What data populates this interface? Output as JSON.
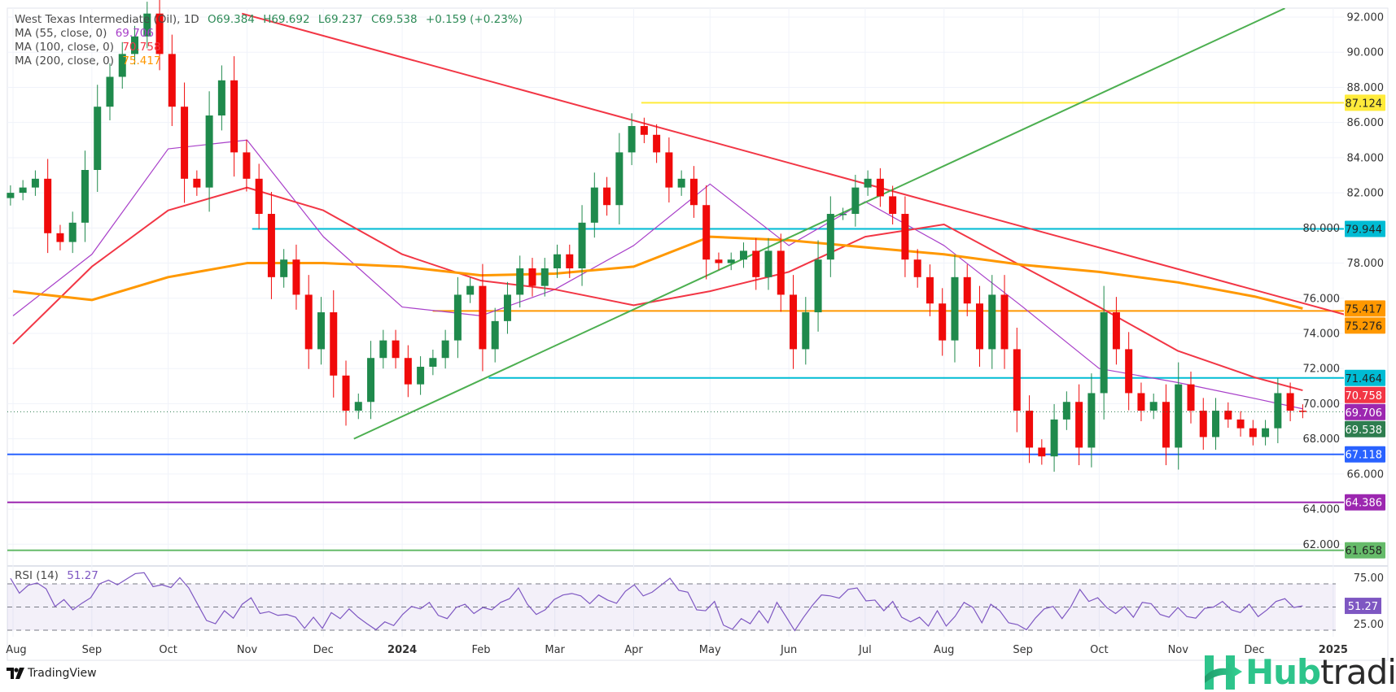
{
  "chart_data": {
    "type": "candlestick",
    "title": "West Texas Intermediate (Oil), 1D",
    "ohlc": {
      "open": "O69.384",
      "high": "H69.692",
      "low": "L69.237",
      "close": "C69.538",
      "change": "+0.159 (+0.23%)"
    },
    "ylim": [
      60.9,
      92.5
    ],
    "y_ticks": [
      "92.000",
      "90.000",
      "88.000",
      "86.000",
      "84.000",
      "82.000",
      "80.000",
      "78.000",
      "76.000",
      "74.000",
      "72.000",
      "70.000",
      "68.000",
      "66.000",
      "64.000",
      "62.000"
    ],
    "x_ticks": [
      {
        "label": "Aug",
        "date": "2023-08-01"
      },
      {
        "label": "Sep",
        "date": "2023-09-01"
      },
      {
        "label": "Oct",
        "date": "2023-10-01"
      },
      {
        "label": "Nov",
        "date": "2023-11-01"
      },
      {
        "label": "Dec",
        "date": "2023-12-01"
      },
      {
        "label": "2024",
        "date": "2024-01-01",
        "bold": true
      },
      {
        "label": "Feb",
        "date": "2024-02-01"
      },
      {
        "label": "Mar",
        "date": "2024-03-01"
      },
      {
        "label": "Apr",
        "date": "2024-04-01"
      },
      {
        "label": "May",
        "date": "2024-05-01"
      },
      {
        "label": "Jun",
        "date": "2024-06-01"
      },
      {
        "label": "Jul",
        "date": "2024-07-01"
      },
      {
        "label": "Aug",
        "date": "2024-08-01"
      },
      {
        "label": "Sep",
        "date": "2024-09-01"
      },
      {
        "label": "Oct",
        "date": "2024-10-01"
      },
      {
        "label": "Nov",
        "date": "2024-11-01"
      },
      {
        "label": "Dec",
        "date": "2024-12-01"
      },
      {
        "label": "2025",
        "date": "2025-01-01",
        "bold": true
      }
    ],
    "grid": true,
    "colors": {
      "up": "#1f8a4c",
      "down": "#f00a0a"
    },
    "first_date": "2023-07-31",
    "last_date": "2024-12-20",
    "closes": [
      82.0,
      82.3,
      82.8,
      79.7,
      79.2,
      80.3,
      83.3,
      86.9,
      88.6,
      89.9,
      90.9,
      92.2,
      89.9,
      86.9,
      82.8,
      82.3,
      86.4,
      88.4,
      84.3,
      82.8,
      80.8,
      77.2,
      78.2,
      76.2,
      73.1,
      75.2,
      71.6,
      69.6,
      70.1,
      72.6,
      73.6,
      72.6,
      71.1,
      72.1,
      72.6,
      73.6,
      76.2,
      76.7,
      73.1,
      74.7,
      76.2,
      77.7,
      76.7,
      77.7,
      78.5,
      77.7,
      80.3,
      82.3,
      81.3,
      84.3,
      85.8,
      85.3,
      84.3,
      82.3,
      82.8,
      81.3,
      78.2,
      78.0,
      78.2,
      78.7,
      77.2,
      78.7,
      76.2,
      73.1,
      75.2,
      78.2,
      80.8,
      80.8,
      82.3,
      82.8,
      81.8,
      80.8,
      78.2,
      77.2,
      75.7,
      73.6,
      77.2,
      75.7,
      73.1,
      76.2,
      73.1,
      69.6,
      67.5,
      67.0,
      69.1,
      70.1,
      67.5,
      70.6,
      75.2,
      73.1,
      70.6,
      69.6,
      70.1,
      67.5,
      71.1,
      69.6,
      68.1,
      69.6,
      69.1,
      68.6,
      68.1,
      68.6,
      70.6,
      69.6,
      69.538
    ],
    "moving_averages": [
      {
        "name": "MA (55, close, 0)",
        "value": "69.706",
        "color": "#a83fc9",
        "points": [
          [
            "2023-08-01",
            75.0
          ],
          [
            "2023-09-01",
            78.5
          ],
          [
            "2023-10-01",
            84.5
          ],
          [
            "2023-11-01",
            85.0
          ],
          [
            "2023-12-01",
            79.5
          ],
          [
            "2024-01-01",
            75.5
          ],
          [
            "2024-02-01",
            75.0
          ],
          [
            "2024-03-01",
            76.5
          ],
          [
            "2024-04-01",
            79.0
          ],
          [
            "2024-05-01",
            82.5
          ],
          [
            "2024-06-01",
            79.0
          ],
          [
            "2024-07-01",
            81.5
          ],
          [
            "2024-08-01",
            79.0
          ],
          [
            "2024-09-01",
            75.5
          ],
          [
            "2024-10-01",
            72.0
          ],
          [
            "2024-11-01",
            71.2
          ],
          [
            "2024-12-01",
            70.3
          ],
          [
            "2024-12-20",
            69.706
          ]
        ]
      },
      {
        "name": "MA (100, close, 0)",
        "value": "70.758",
        "color": "#f23645",
        "points": [
          [
            "2023-08-01",
            73.4
          ],
          [
            "2023-09-01",
            77.8
          ],
          [
            "2023-10-01",
            81.0
          ],
          [
            "2023-11-01",
            82.3
          ],
          [
            "2023-12-01",
            81.0
          ],
          [
            "2024-01-01",
            78.5
          ],
          [
            "2024-02-01",
            77.0
          ],
          [
            "2024-03-01",
            76.5
          ],
          [
            "2024-04-01",
            75.6
          ],
          [
            "2024-05-01",
            76.4
          ],
          [
            "2024-06-01",
            77.5
          ],
          [
            "2024-07-01",
            79.5
          ],
          [
            "2024-08-01",
            80.2
          ],
          [
            "2024-09-01",
            77.8
          ],
          [
            "2024-10-01",
            75.5
          ],
          [
            "2024-11-01",
            73.0
          ],
          [
            "2024-12-01",
            71.5
          ],
          [
            "2024-12-20",
            70.758
          ]
        ]
      },
      {
        "name": "MA (200, close, 0)",
        "value": "75.417",
        "color": "#ff9800",
        "points": [
          [
            "2023-08-01",
            76.4
          ],
          [
            "2023-09-01",
            75.9
          ],
          [
            "2023-10-01",
            77.2
          ],
          [
            "2023-11-01",
            78.0
          ],
          [
            "2023-12-01",
            78.0
          ],
          [
            "2024-01-01",
            77.8
          ],
          [
            "2024-02-01",
            77.3
          ],
          [
            "2024-03-01",
            77.4
          ],
          [
            "2024-04-01",
            77.8
          ],
          [
            "2024-05-01",
            79.5
          ],
          [
            "2024-06-01",
            79.3
          ],
          [
            "2024-07-01",
            78.9
          ],
          [
            "2024-08-01",
            78.5
          ],
          [
            "2024-09-01",
            77.9
          ],
          [
            "2024-10-01",
            77.5
          ],
          [
            "2024-11-01",
            76.9
          ],
          [
            "2024-12-01",
            76.1
          ],
          [
            "2024-12-20",
            75.417
          ]
        ]
      }
    ],
    "trendlines": [
      {
        "color": "#f23645",
        "from": [
          "2023-10-30",
          92.2
        ],
        "to": [
          "2025-01-25",
          74.3
        ]
      },
      {
        "color": "#4caf50",
        "from": [
          "2023-12-13",
          68.0
        ],
        "to": [
          "2024-12-13",
          92.5
        ]
      }
    ],
    "horizontal_levels": [
      {
        "value": 87.124,
        "label": "87.124",
        "color": "#ffeb3b",
        "text_color": "#222",
        "from": "2024-04-04"
      },
      {
        "value": 79.944,
        "label": "79.944",
        "color": "#00bcd4",
        "text_color": "#222",
        "from": "2023-11-03"
      },
      {
        "value": 75.276,
        "label": "75.276",
        "color": "#ff9800",
        "text_color": "#222",
        "from": "2024-01-13"
      },
      {
        "value": 71.464,
        "label": "71.464",
        "color": "#00bcd4",
        "text_color": "#222",
        "from": "2024-02-04"
      },
      {
        "value": 67.118,
        "label": "67.118",
        "color": "#2962ff",
        "text_color": "#fff"
      },
      {
        "value": 64.386,
        "label": "64.386",
        "color": "#9c27b0",
        "text_color": "#fff"
      },
      {
        "value": 61.658,
        "label": "61.658",
        "color": "#66bb6a",
        "text_color": "#222"
      }
    ],
    "price_tags": [
      {
        "value": 75.417,
        "label": "75.417",
        "color": "#ff9800",
        "text_color": "#222"
      },
      {
        "value": 70.758,
        "label": "70.758",
        "color": "#f23645",
        "text_color": "#fff"
      },
      {
        "value": 69.706,
        "label": "69.706",
        "color": "#9c27b0",
        "text_color": "#fff"
      },
      {
        "value": 69.538,
        "label": "69.538",
        "color": "#2e7d4f",
        "text_color": "#fff"
      }
    ],
    "last_price": 69.538,
    "rsi": {
      "name": "RSI (14)",
      "value": "51.27",
      "color": "#7e57c2",
      "levels": [
        75,
        50,
        25
      ],
      "tick_labels": [
        "75.00",
        "25.00"
      ],
      "values": [
        81,
        65,
        73.5,
        76,
        69.6,
        50.6,
        58,
        47,
        54,
        60,
        75,
        79,
        74,
        80,
        86,
        87,
        72,
        74,
        71,
        81.7,
        70.6,
        53,
        35.5,
        32,
        46,
        38,
        53,
        60,
        43,
        45,
        41,
        42,
        39,
        27,
        39,
        27,
        44,
        37.5,
        48,
        39,
        32,
        25.5,
        34,
        30,
        42,
        50.6,
        48,
        55,
        41,
        37.5,
        49.5,
        53,
        43,
        49.5,
        47,
        55,
        59,
        70.6,
        53,
        42,
        47,
        58,
        63,
        64.6,
        62,
        53.6,
        63,
        57.5,
        54,
        67,
        74,
        62,
        66,
        73.5,
        81,
        68,
        66,
        47,
        46,
        56,
        30.5,
        26,
        37.5,
        32,
        46,
        33,
        55,
        40,
        24.5,
        39,
        52,
        63,
        62,
        59.6,
        69,
        70.6,
        56.6,
        57.5,
        46,
        56,
        39,
        34,
        39,
        29.5,
        46,
        29.5,
        40,
        55,
        49.5,
        33,
        53,
        46,
        33,
        31,
        25.5,
        38,
        48,
        50.6,
        37.5,
        50.6,
        69,
        56,
        60,
        49.5,
        43,
        50.6,
        39,
        55,
        53.6,
        42,
        39,
        49.5,
        39.7,
        38,
        48.5,
        50,
        56,
        47,
        44,
        53,
        39.7,
        47,
        56,
        59,
        49.5,
        51.27
      ]
    }
  },
  "footer": {
    "tradingview": "TradingView",
    "brand_hub": "Hub",
    "brand_trading": "trading"
  }
}
